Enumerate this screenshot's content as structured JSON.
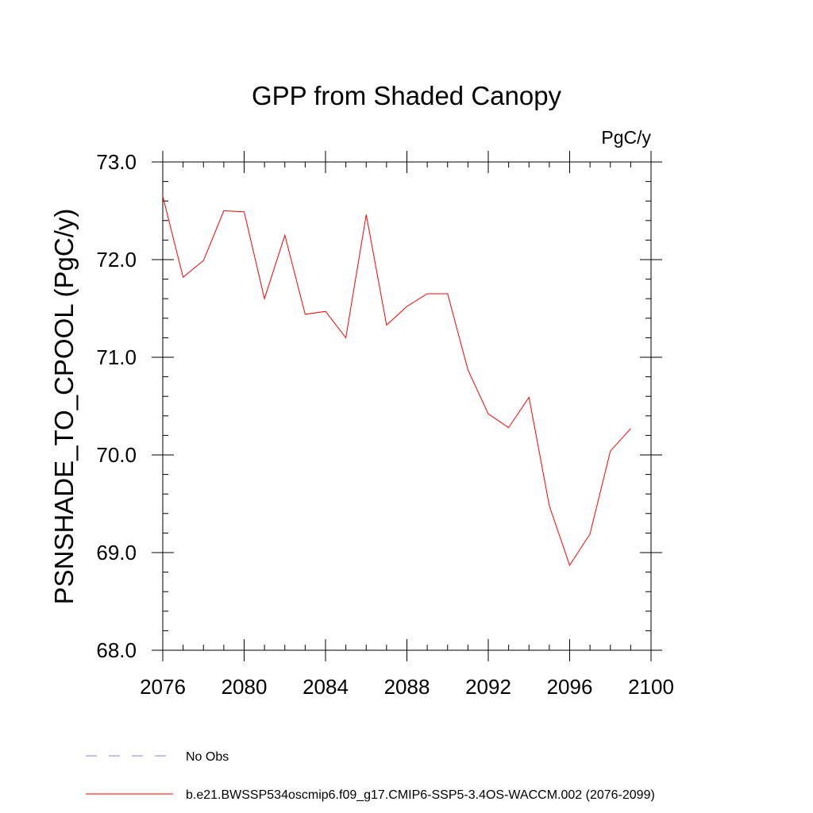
{
  "chart_data": {
    "type": "line",
    "title": "GPP from Shaded Canopy",
    "units": "PgC/y",
    "xlabel": "",
    "ylabel": "PSNSHADE_TO_CPOOL  (PgC/y)",
    "xlim": [
      2076,
      2100
    ],
    "ylim": [
      68.0,
      73.0
    ],
    "x_ticks": [
      2076,
      2080,
      2084,
      2088,
      2092,
      2096,
      2100
    ],
    "y_ticks": [
      "68.0",
      "69.0",
      "70.0",
      "71.0",
      "72.0",
      "73.0"
    ],
    "grid": false,
    "legend_position": "bottom-left",
    "series": [
      {
        "name": "b.e21.BWSSP534oscmip6.f09_g17.CMIP6-SSP5-3.4OS-WACCM.002 (2076-2099)",
        "color": "#ff0000",
        "style": "solid",
        "x": [
          2076,
          2077,
          2078,
          2079,
          2080,
          2081,
          2082,
          2083,
          2084,
          2085,
          2086,
          2087,
          2088,
          2089,
          2090,
          2091,
          2092,
          2093,
          2094,
          2095,
          2096,
          2097,
          2098,
          2099
        ],
        "values": [
          72.65,
          71.82,
          71.99,
          72.5,
          72.49,
          71.6,
          72.25,
          71.44,
          71.47,
          71.2,
          72.46,
          71.33,
          71.52,
          71.65,
          71.65,
          70.87,
          70.42,
          70.28,
          70.59,
          69.48,
          68.87,
          69.19,
          70.04,
          70.27
        ]
      }
    ],
    "legend": [
      {
        "label": "No Obs",
        "color": "#8a7fd6",
        "style": "dashed"
      },
      {
        "label": "b.e21.BWSSP534oscmip6.f09_g17.CMIP6-SSP5-3.4OS-WACCM.002 (2076-2099)",
        "color": "#ff0000",
        "style": "solid"
      }
    ]
  }
}
